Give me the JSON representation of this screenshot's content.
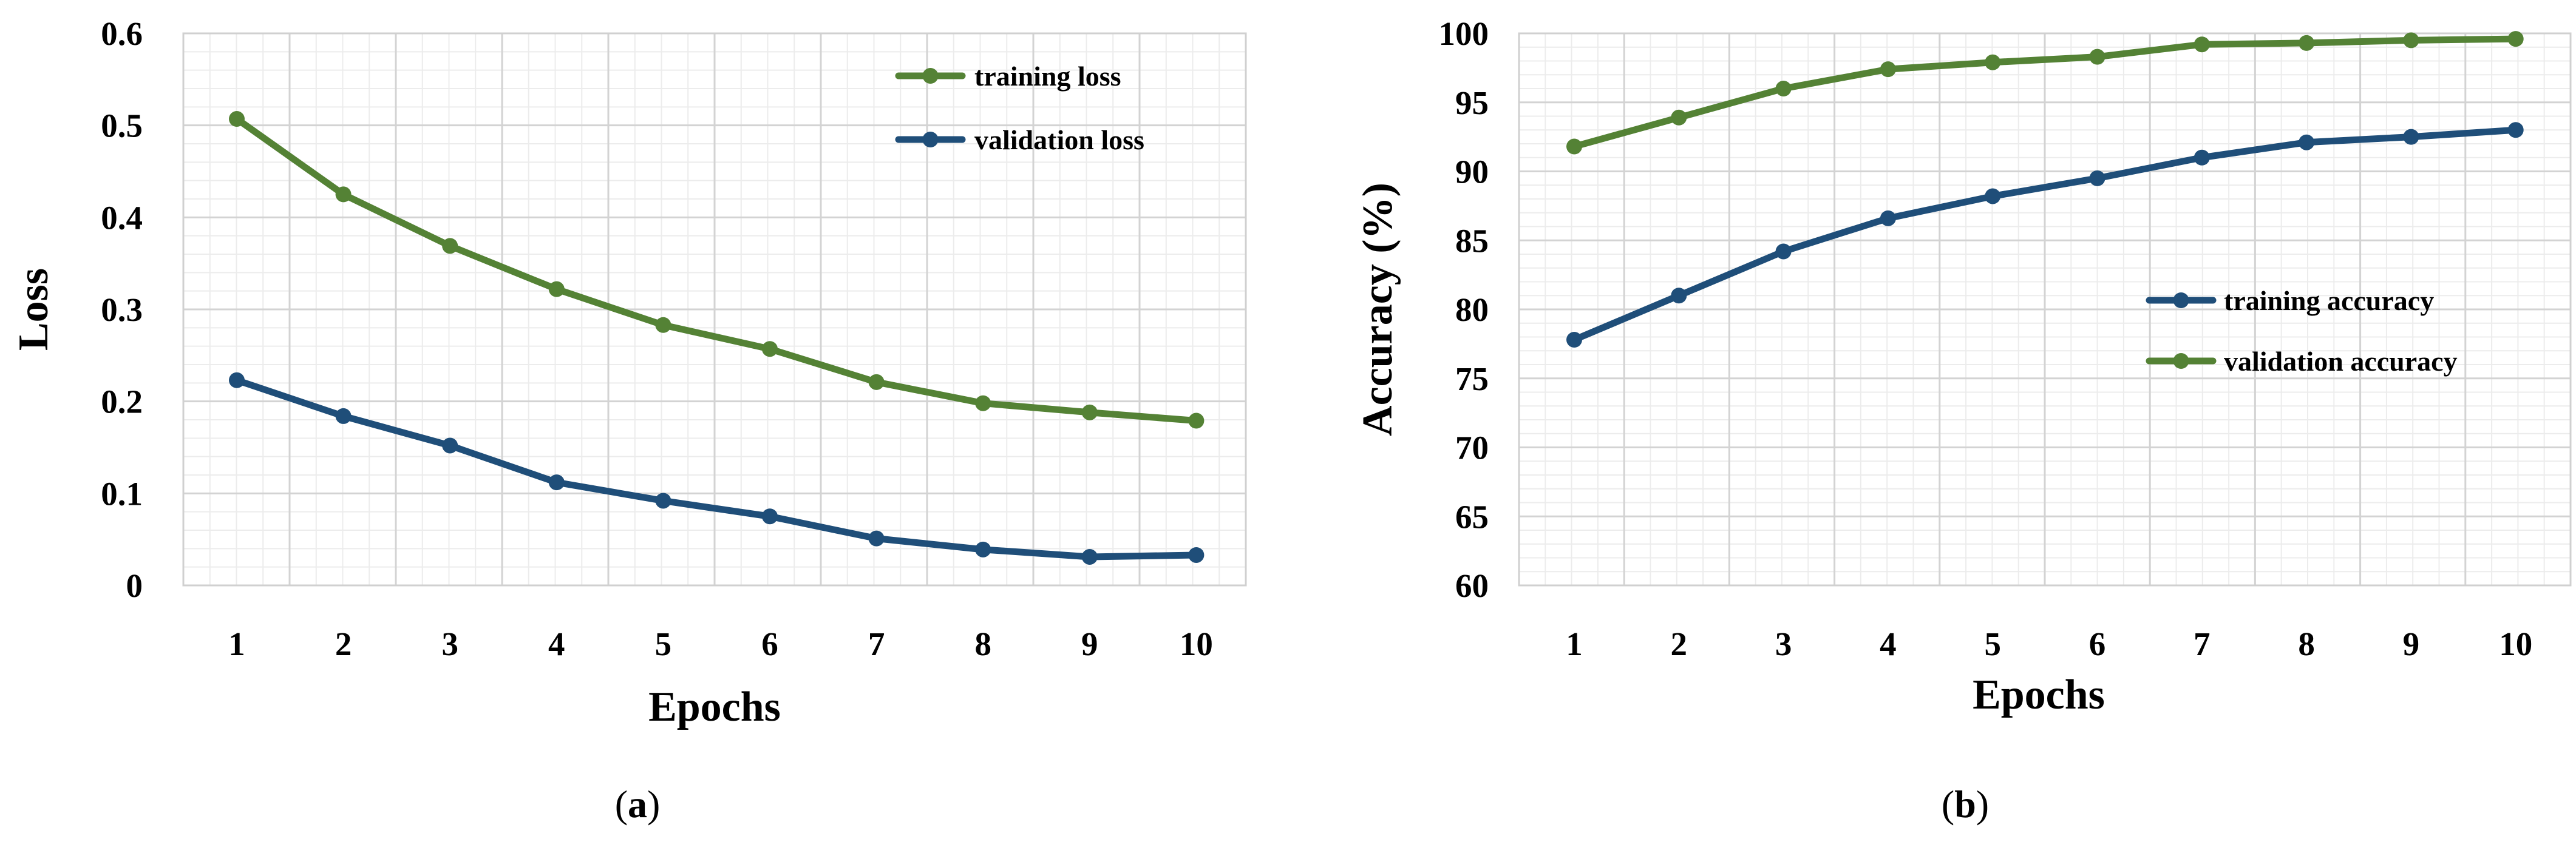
{
  "chart_data": [
    {
      "type": "line",
      "panel": "a",
      "caption": "(a)",
      "caption_letter": "a",
      "title": "",
      "xlabel": "Epochs",
      "ylabel": "Loss",
      "x": [
        1,
        2,
        3,
        4,
        5,
        6,
        7,
        8,
        9,
        10
      ],
      "ylim": [
        0,
        0.6
      ],
      "yticks": [
        0,
        0.1,
        0.2,
        0.3,
        0.4,
        0.5,
        0.6
      ],
      "ytick_labels": [
        "0",
        "0.1",
        "0.2",
        "0.3",
        "0.4",
        "0.5",
        "0.6"
      ],
      "grid": true,
      "legend_position": "top-right",
      "series": [
        {
          "name": "training loss",
          "color": "#548235",
          "values": [
            0.507,
            0.425,
            0.369,
            0.322,
            0.283,
            0.257,
            0.221,
            0.198,
            0.188,
            0.179
          ]
        },
        {
          "name": "validation loss",
          "color": "#1F4E79",
          "values": [
            0.223,
            0.184,
            0.152,
            0.112,
            0.092,
            0.075,
            0.051,
            0.039,
            0.031,
            0.033
          ]
        }
      ]
    },
    {
      "type": "line",
      "panel": "b",
      "caption": "(b)",
      "caption_letter": "b",
      "title": "",
      "xlabel": "Epochs",
      "ylabel": "Accuracy (%)",
      "x": [
        1,
        2,
        3,
        4,
        5,
        6,
        7,
        8,
        9,
        10
      ],
      "ylim": [
        60,
        100
      ],
      "yticks": [
        60,
        65,
        70,
        75,
        80,
        85,
        90,
        95,
        100
      ],
      "ytick_labels": [
        "60",
        "65",
        "70",
        "75",
        "80",
        "85",
        "90",
        "95",
        "100"
      ],
      "grid": true,
      "legend_position": "center-right",
      "series": [
        {
          "name": "training accuracy",
          "color": "#1F4E79",
          "values": [
            77.8,
            81.0,
            84.2,
            86.6,
            88.2,
            89.5,
            91.0,
            92.1,
            92.5,
            93.0
          ]
        },
        {
          "name": "validation accuracy",
          "color": "#548235",
          "values": [
            91.8,
            93.9,
            96.0,
            97.4,
            97.9,
            98.3,
            99.2,
            99.3,
            99.5,
            99.6
          ]
        }
      ]
    }
  ]
}
